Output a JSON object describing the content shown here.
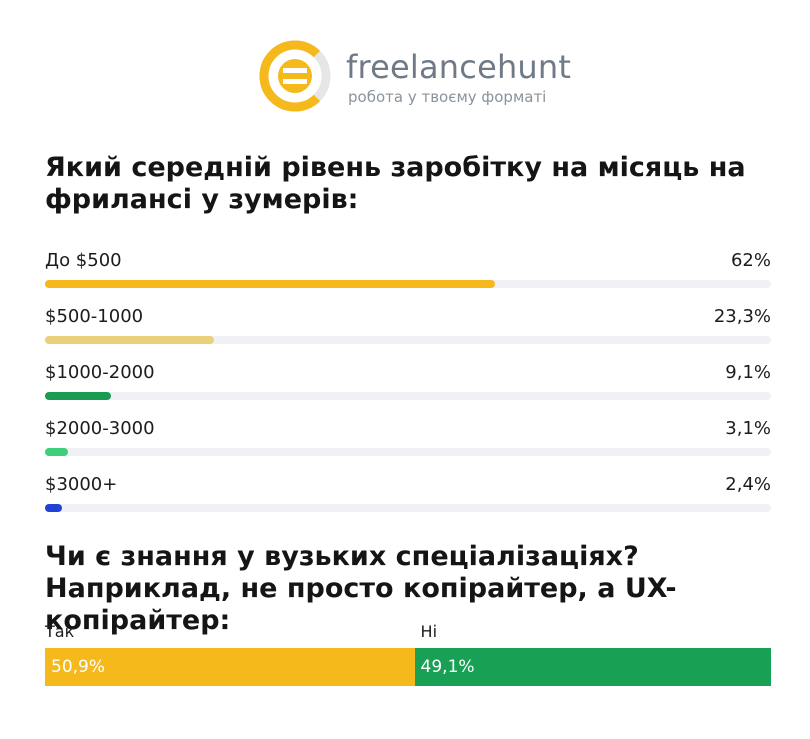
{
  "brand": {
    "name": "freelancehunt",
    "tagline": "робота у твоєму форматі",
    "logo_colors": {
      "primary": "#f6b91b",
      "secondary": "#e8e8e8"
    }
  },
  "chart_data": [
    {
      "type": "bar",
      "orientation": "horizontal",
      "title": "Який середній рівень заробітку на місяць на фрилансі у зумерів:",
      "categories": [
        "До $500",
        "$500-1000",
        "$1000-2000",
        "$2000-3000",
        "$3000+"
      ],
      "values": [
        62,
        23.3,
        9.1,
        3.1,
        2.4
      ],
      "value_labels": [
        "62%",
        "23,3%",
        "9,1%",
        "3,1%",
        "2,4%"
      ],
      "colors": [
        "#f6b91b",
        "#ead07a",
        "#1a9b52",
        "#3dcf7a",
        "#2141d9"
      ],
      "xlim": [
        0,
        100
      ],
      "unit": "%"
    },
    {
      "type": "bar",
      "orientation": "stacked-horizontal",
      "title": "Чи є знання у вузьких спеціалізаціях? Наприклад, не просто копірайтер, а UX-копірайтер:",
      "categories": [
        "Так",
        "Ні"
      ],
      "values": [
        50.9,
        49.1
      ],
      "value_labels": [
        "50,9%",
        "49,1%"
      ],
      "colors": [
        "#f6b91b",
        "#18a055"
      ],
      "unit": "%"
    }
  ]
}
